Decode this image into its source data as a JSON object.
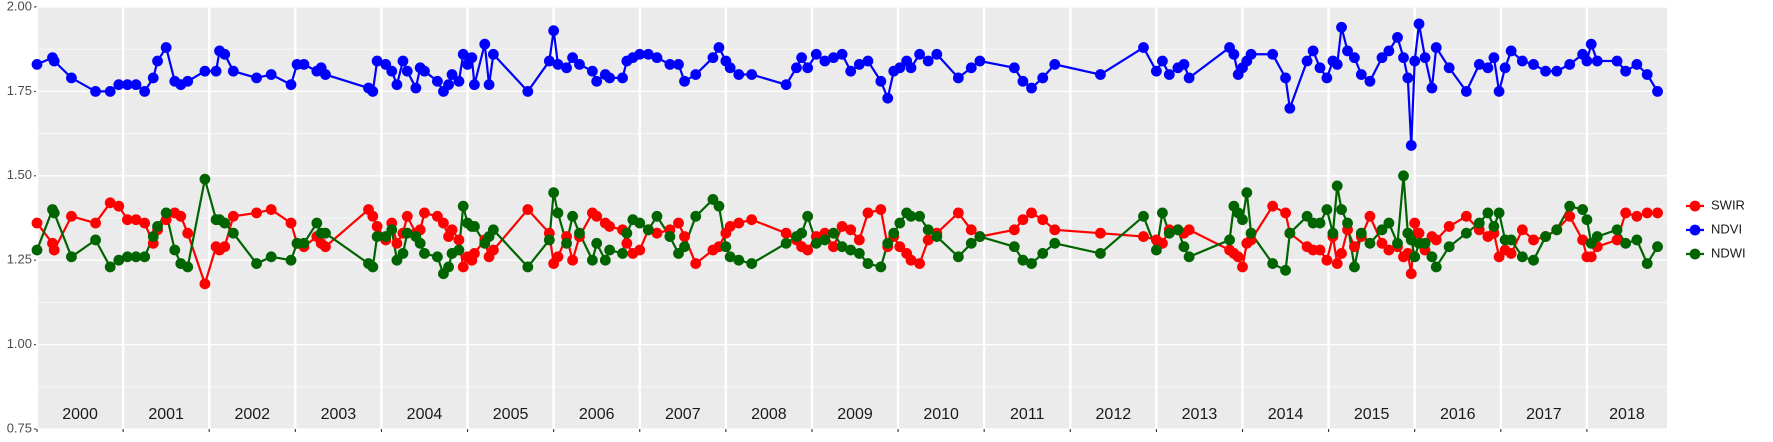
{
  "chart_data": {
    "type": "line",
    "year_labels": [
      "2000",
      "2001",
      "2002",
      "2003",
      "2004",
      "2005",
      "2006",
      "2007",
      "2008",
      "2009",
      "2010",
      "2011",
      "2012",
      "2013",
      "2014",
      "2015",
      "2016",
      "2017",
      "2018"
    ],
    "xlim": [
      2000,
      2018.93
    ],
    "xticks": [
      2000,
      2001,
      2002,
      2003,
      2004,
      2005,
      2006,
      2007,
      2008,
      2009,
      2010,
      2011,
      2012,
      2013,
      2014,
      2015,
      2016,
      2017,
      2018
    ],
    "ylim": [
      0.75,
      2.0
    ],
    "yticks": [
      0.75,
      {
        "value": 1.0,
        "label": "1.00"
      },
      1.25,
      {
        "value": 1.5,
        "label": "1.50"
      },
      1.75,
      {
        "value": 2.0,
        "label": "2.00"
      }
    ],
    "grid": true,
    "legend": "right",
    "x": [
      2000.0,
      2000.18,
      2000.2,
      2000.4,
      2000.68,
      2000.85,
      2000.95,
      2001.05,
      2001.15,
      2001.25,
      2001.35,
      2001.4,
      2001.5,
      2001.6,
      2001.67,
      2001.75,
      2001.95,
      2002.08,
      2002.12,
      2002.18,
      2002.28,
      2002.55,
      2002.72,
      2002.95,
      2003.02,
      2003.1,
      2003.25,
      2003.3,
      2003.35,
      2003.85,
      2003.9,
      2003.95,
      2004.05,
      2004.12,
      2004.18,
      2004.25,
      2004.3,
      2004.4,
      2004.45,
      2004.5,
      2004.65,
      2004.72,
      2004.78,
      2004.82,
      2004.9,
      2004.95,
      2005.0,
      2005.05,
      2005.08,
      2005.2,
      2005.25,
      2005.3,
      2005.7,
      2005.95,
      2006.0,
      2006.05,
      2006.15,
      2006.22,
      2006.3,
      2006.45,
      2006.5,
      2006.6,
      2006.65,
      2006.8,
      2006.85,
      2006.92,
      2007.0,
      2007.1,
      2007.2,
      2007.35,
      2007.45,
      2007.52,
      2007.65,
      2007.85,
      2007.92,
      2008.0,
      2008.05,
      2008.15,
      2008.3,
      2008.7,
      2008.82,
      2008.88,
      2008.95,
      2009.05,
      2009.15,
      2009.25,
      2009.35,
      2009.45,
      2009.55,
      2009.65,
      2009.8,
      2009.88,
      2009.95,
      2010.02,
      2010.1,
      2010.15,
      2010.25,
      2010.35,
      2010.45,
      2010.7,
      2010.85,
      2010.95,
      2011.35,
      2011.45,
      2011.55,
      2011.68,
      2011.82,
      2012.35,
      2012.85,
      2013.0,
      2013.07,
      2013.15,
      2013.25,
      2013.32,
      2013.38,
      2013.85,
      2013.9,
      2013.95,
      2014.0,
      2014.05,
      2014.1,
      2014.35,
      2014.5,
      2014.55,
      2014.75,
      2014.82,
      2014.9,
      2014.98,
      2015.05,
      2015.1,
      2015.15,
      2015.22,
      2015.3,
      2015.38,
      2015.48,
      2015.62,
      2015.7,
      2015.8,
      2015.87,
      2015.92,
      2015.96,
      2016.0,
      2016.05,
      2016.12,
      2016.2,
      2016.25,
      2016.4,
      2016.6,
      2016.75,
      2016.85,
      2016.92,
      2016.98,
      2017.05,
      2017.12,
      2017.25,
      2017.38,
      2017.52,
      2017.65,
      2017.8,
      2017.95,
      2018.0,
      2018.05,
      2018.12,
      2018.35,
      2018.45,
      2018.58,
      2018.7,
      2018.82
    ],
    "series": [
      {
        "name": "SWIR",
        "color": "#ff0000",
        "values": [
          1.36,
          1.3,
          1.28,
          1.38,
          1.36,
          1.42,
          1.41,
          1.37,
          1.37,
          1.36,
          1.3,
          1.34,
          1.37,
          1.39,
          1.38,
          1.33,
          1.18,
          1.29,
          1.28,
          1.29,
          1.38,
          1.39,
          1.4,
          1.36,
          1.3,
          1.29,
          1.32,
          1.3,
          1.29,
          1.4,
          1.38,
          1.35,
          1.31,
          1.36,
          1.3,
          1.33,
          1.38,
          1.33,
          1.34,
          1.39,
          1.38,
          1.36,
          1.32,
          1.34,
          1.31,
          1.23,
          1.26,
          1.25,
          1.27,
          1.31,
          1.26,
          1.28,
          1.4,
          1.33,
          1.24,
          1.26,
          1.32,
          1.25,
          1.32,
          1.39,
          1.38,
          1.36,
          1.35,
          1.34,
          1.3,
          1.27,
          1.28,
          1.34,
          1.33,
          1.34,
          1.36,
          1.32,
          1.24,
          1.28,
          1.29,
          1.33,
          1.35,
          1.36,
          1.37,
          1.33,
          1.31,
          1.29,
          1.28,
          1.32,
          1.33,
          1.29,
          1.35,
          1.34,
          1.31,
          1.39,
          1.4,
          1.29,
          1.32,
          1.29,
          1.27,
          1.25,
          1.24,
          1.31,
          1.33,
          1.39,
          1.34,
          1.32,
          1.34,
          1.37,
          1.39,
          1.37,
          1.34,
          1.33,
          1.32,
          1.31,
          1.3,
          1.34,
          1.34,
          1.33,
          1.34,
          1.28,
          1.27,
          1.26,
          1.23,
          1.3,
          1.31,
          1.41,
          1.39,
          1.33,
          1.29,
          1.28,
          1.28,
          1.25,
          1.32,
          1.24,
          1.27,
          1.34,
          1.29,
          1.32,
          1.38,
          1.3,
          1.28,
          1.29,
          1.26,
          1.27,
          1.21,
          1.36,
          1.33,
          1.28,
          1.32,
          1.31,
          1.35,
          1.38,
          1.34,
          1.32,
          1.33,
          1.26,
          1.28,
          1.27,
          1.34,
          1.31,
          1.32,
          1.34,
          1.38,
          1.31,
          1.26,
          1.26,
          1.29,
          1.31,
          1.39,
          1.38,
          1.39,
          1.39
        ]
      },
      {
        "name": "NDVI",
        "color": "#0000ff",
        "values": [
          1.83,
          1.85,
          1.84,
          1.79,
          1.75,
          1.75,
          1.77,
          1.77,
          1.77,
          1.75,
          1.79,
          1.84,
          1.88,
          1.78,
          1.77,
          1.78,
          1.81,
          1.81,
          1.87,
          1.86,
          1.81,
          1.79,
          1.8,
          1.77,
          1.83,
          1.83,
          1.81,
          1.82,
          1.8,
          1.76,
          1.75,
          1.84,
          1.83,
          1.81,
          1.77,
          1.84,
          1.81,
          1.76,
          1.82,
          1.81,
          1.78,
          1.75,
          1.77,
          1.8,
          1.78,
          1.86,
          1.83,
          1.85,
          1.77,
          1.89,
          1.77,
          1.86,
          1.75,
          1.84,
          1.93,
          1.83,
          1.82,
          1.85,
          1.83,
          1.81,
          1.78,
          1.8,
          1.79,
          1.79,
          1.84,
          1.85,
          1.86,
          1.86,
          1.85,
          1.83,
          1.83,
          1.78,
          1.8,
          1.85,
          1.88,
          1.84,
          1.82,
          1.8,
          1.8,
          1.77,
          1.82,
          1.85,
          1.82,
          1.86,
          1.84,
          1.85,
          1.86,
          1.81,
          1.83,
          1.84,
          1.78,
          1.73,
          1.81,
          1.82,
          1.84,
          1.82,
          1.86,
          1.84,
          1.86,
          1.79,
          1.82,
          1.84,
          1.82,
          1.78,
          1.76,
          1.79,
          1.83,
          1.8,
          1.88,
          1.81,
          1.84,
          1.8,
          1.82,
          1.83,
          1.79,
          1.88,
          1.86,
          1.8,
          1.82,
          1.84,
          1.86,
          1.86,
          1.79,
          1.7,
          1.84,
          1.87,
          1.82,
          1.79,
          1.84,
          1.83,
          1.94,
          1.87,
          1.85,
          1.8,
          1.78,
          1.85,
          1.87,
          1.91,
          1.85,
          1.79,
          1.59,
          1.84,
          1.95,
          1.85,
          1.76,
          1.88,
          1.82,
          1.75,
          1.83,
          1.82,
          1.85,
          1.75,
          1.82,
          1.87,
          1.84,
          1.83,
          1.81,
          1.81,
          1.83,
          1.86,
          1.84,
          1.89,
          1.84,
          1.84,
          1.81,
          1.83,
          1.8,
          1.75
        ]
      },
      {
        "name": "NDWI",
        "color": "#006400",
        "values": [
          1.28,
          1.4,
          1.39,
          1.26,
          1.31,
          1.23,
          1.25,
          1.26,
          1.26,
          1.26,
          1.32,
          1.35,
          1.39,
          1.28,
          1.24,
          1.23,
          1.49,
          1.37,
          1.37,
          1.36,
          1.33,
          1.24,
          1.26,
          1.25,
          1.3,
          1.3,
          1.36,
          1.33,
          1.33,
          1.24,
          1.23,
          1.32,
          1.32,
          1.34,
          1.25,
          1.27,
          1.33,
          1.32,
          1.3,
          1.27,
          1.26,
          1.21,
          1.23,
          1.27,
          1.28,
          1.41,
          1.36,
          1.35,
          1.35,
          1.3,
          1.32,
          1.34,
          1.23,
          1.31,
          1.45,
          1.39,
          1.3,
          1.38,
          1.33,
          1.25,
          1.3,
          1.25,
          1.28,
          1.27,
          1.33,
          1.37,
          1.36,
          1.34,
          1.38,
          1.32,
          1.27,
          1.29,
          1.38,
          1.43,
          1.41,
          1.29,
          1.26,
          1.25,
          1.24,
          1.3,
          1.32,
          1.33,
          1.38,
          1.3,
          1.31,
          1.33,
          1.29,
          1.28,
          1.27,
          1.24,
          1.23,
          1.3,
          1.33,
          1.36,
          1.39,
          1.38,
          1.38,
          1.34,
          1.32,
          1.26,
          1.3,
          1.32,
          1.29,
          1.25,
          1.24,
          1.27,
          1.3,
          1.27,
          1.38,
          1.28,
          1.39,
          1.33,
          1.34,
          1.29,
          1.26,
          1.31,
          1.41,
          1.39,
          1.37,
          1.45,
          1.33,
          1.24,
          1.22,
          1.33,
          1.38,
          1.36,
          1.36,
          1.4,
          1.33,
          1.47,
          1.4,
          1.36,
          1.23,
          1.33,
          1.3,
          1.34,
          1.36,
          1.3,
          1.5,
          1.33,
          1.31,
          1.26,
          1.3,
          1.3,
          1.26,
          1.23,
          1.29,
          1.33,
          1.36,
          1.39,
          1.35,
          1.39,
          1.31,
          1.31,
          1.26,
          1.25,
          1.32,
          1.34,
          1.41,
          1.4,
          1.37,
          1.3,
          1.32,
          1.34,
          1.3,
          1.31,
          1.24,
          1.29
        ]
      }
    ]
  }
}
